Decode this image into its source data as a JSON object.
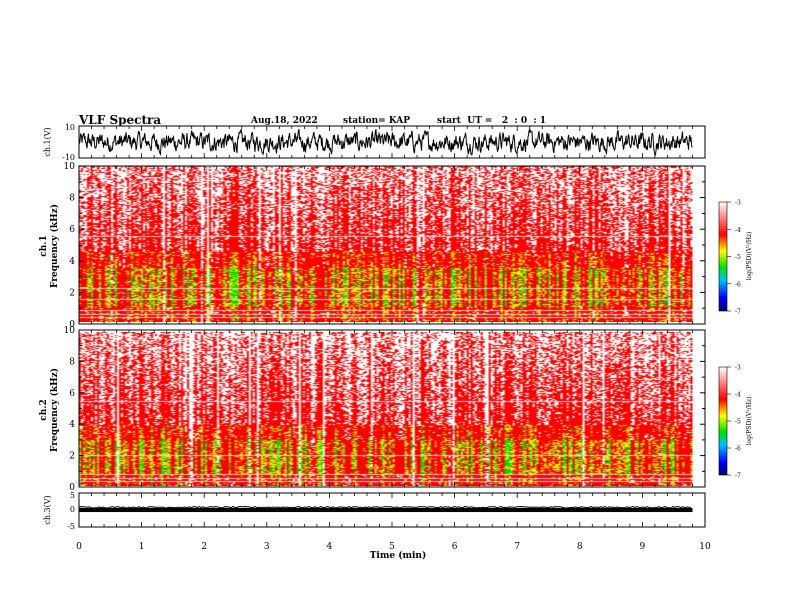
{
  "header": {
    "title": "VLF Spectra",
    "date": "Aug.18, 2022",
    "station": "station= KAP",
    "start": "start  UT =   2  : 0  : 1"
  },
  "colors": {
    "spectrogram_low": "#ffffff",
    "spectrogram_mid": "#ff0000",
    "spectrogram_high_yellow": "#ffff00",
    "spectrogram_high_green": "#00e000",
    "trace": "#000000"
  },
  "chart_data": [
    {
      "type": "line",
      "ylabel": "ch.1(V)",
      "ylim": [
        -10,
        10
      ],
      "yticks": [
        "10",
        "-10"
      ],
      "xlim": [
        0,
        10
      ],
      "description_of_trace": "noisy waveform oscillating mostly between about -8 and 8 V",
      "amplitude_range": [
        -8,
        8
      ]
    },
    {
      "type": "heatmap",
      "ylabel": "ch.1\nFrequency (kHz)",
      "ylabel_line1": "ch.1",
      "ylabel_line2": "Frequency (kHz)",
      "xlim": [
        0,
        10
      ],
      "ylim": [
        0,
        10
      ],
      "yticks": [
        "0",
        "2",
        "4",
        "6",
        "8",
        "10"
      ],
      "colorbar": {
        "label": "log(PSD)(V²/Hz)",
        "ticks": [
          "-3",
          "-4",
          "-5",
          "-6",
          "-7"
        ],
        "range": [
          -7,
          -3
        ]
      },
      "band_kHz": [
        0.5,
        4.5
      ],
      "intense_band_kHz": [
        1.0,
        3.5
      ],
      "horizontal_lines_kHz": [
        0.3,
        0.5,
        0.8,
        1.5,
        2.2,
        5.5
      ]
    },
    {
      "type": "heatmap",
      "ylabel_line1": "ch.2",
      "ylabel_line2": "Frequency (kHz)",
      "xlim": [
        0,
        10
      ],
      "ylim": [
        0,
        10
      ],
      "yticks": [
        "0",
        "2",
        "4",
        "6",
        "8",
        "10"
      ],
      "colorbar": {
        "label": "log(PSD)(V²/Hz)",
        "ticks": [
          "-3",
          "-4",
          "-5",
          "-6",
          "-7"
        ],
        "range": [
          -7,
          -3
        ]
      },
      "band_kHz": [
        0.5,
        4.0
      ],
      "intense_band_kHz": [
        0.8,
        3.0
      ],
      "horizontal_lines_kHz": [
        0.3,
        0.5,
        0.8,
        2.0,
        5.5
      ]
    },
    {
      "type": "line",
      "ylabel": "ch.3(V)",
      "ylim": [
        -5,
        5
      ],
      "yticks": [
        "5",
        "0",
        "-5"
      ],
      "xlim": [
        0,
        10
      ],
      "amplitude_range": [
        -0.6,
        0.6
      ]
    }
  ],
  "xaxis": {
    "label": "Time (min)",
    "ticks": [
      "0",
      "1",
      "2",
      "3",
      "4",
      "5",
      "6",
      "7",
      "8",
      "9",
      "10"
    ],
    "range": [
      0,
      10
    ],
    "data_end": 9.8
  }
}
